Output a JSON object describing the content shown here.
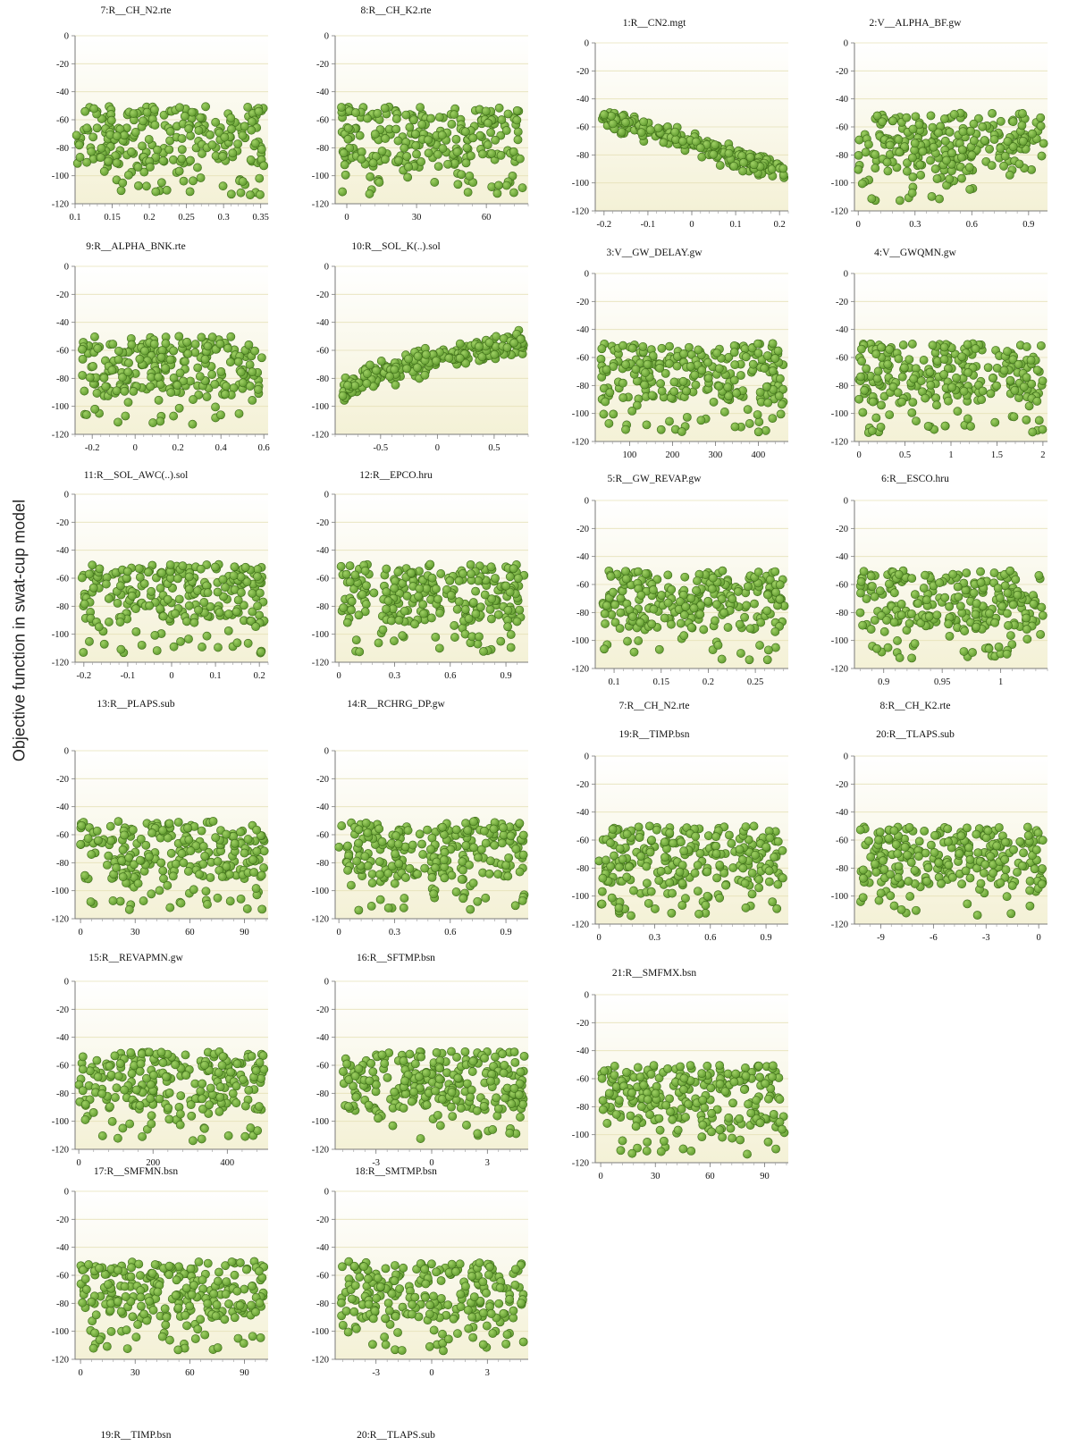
{
  "figure": {
    "ylabel": "Objective function in swat-cup model"
  },
  "dot_color": "#5f9a2e",
  "dot_edge": "#3d6b18",
  "yticks": [
    0,
    -20,
    -40,
    -60,
    -80,
    -100,
    -120
  ],
  "chart_data": [
    {
      "type": "scatter",
      "title": "7:R__CH_N2.rte",
      "xticks": [
        0.1,
        0.15,
        0.2,
        0.25,
        0.3,
        0.35
      ],
      "xlim": [
        0.1,
        0.36
      ],
      "ylim": [
        -120,
        0
      ],
      "pattern": "flat",
      "point_count": 250
    },
    {
      "type": "scatter",
      "title": "8:R__CH_K2.rte",
      "xticks": [
        0,
        30,
        60
      ],
      "xlim": [
        -5,
        78
      ],
      "ylim": [
        -120,
        0
      ],
      "pattern": "flat",
      "point_count": 250
    },
    {
      "type": "scatter",
      "title": "1:R__CN2.mgt",
      "xticks": [
        -0.2,
        -0.1,
        0,
        0.1,
        0.2
      ],
      "xlim": [
        -0.22,
        0.22
      ],
      "ylim": [
        -120,
        0
      ],
      "pattern": "decreasing",
      "point_count": 250
    },
    {
      "type": "scatter",
      "title": "2:V__ALPHA_BF.gw",
      "xticks": [
        0,
        0.3,
        0.6,
        0.9
      ],
      "xlim": [
        -0.02,
        1.0
      ],
      "ylim": [
        -120,
        0
      ],
      "pattern": "flat",
      "point_count": 250
    },
    {
      "type": "scatter",
      "title": "9:R__ALPHA_BNK.rte",
      "xticks": [
        -0.2,
        0,
        0.2,
        0.4,
        0.6
      ],
      "xlim": [
        -0.28,
        0.62
      ],
      "ylim": [
        -120,
        0
      ],
      "pattern": "flat",
      "point_count": 250
    },
    {
      "type": "scatter",
      "title": "10:R__SOL_K(..).sol",
      "xticks": [
        -0.5,
        0,
        0.5
      ],
      "xlim": [
        -0.9,
        0.8
      ],
      "ylim": [
        -120,
        0
      ],
      "pattern": "increasing",
      "point_count": 250
    },
    {
      "type": "scatter",
      "title": "3:V__GW_DELAY.gw",
      "xticks": [
        100,
        200,
        300,
        400
      ],
      "xlim": [
        20,
        470
      ],
      "ylim": [
        -120,
        0
      ],
      "pattern": "flat",
      "point_count": 250
    },
    {
      "type": "scatter",
      "title": "4:V__GWQMN.gw",
      "xticks": [
        0,
        0.5,
        1,
        1.5,
        2
      ],
      "xlim": [
        -0.05,
        2.05
      ],
      "ylim": [
        -120,
        0
      ],
      "pattern": "flat",
      "point_count": 250
    },
    {
      "type": "scatter",
      "title": "11:R__SOL_AWC(..).sol",
      "xticks": [
        -0.2,
        -0.1,
        0,
        0.1,
        0.2
      ],
      "xlim": [
        -0.22,
        0.22
      ],
      "ylim": [
        -120,
        0
      ],
      "pattern": "flat",
      "point_count": 250
    },
    {
      "type": "scatter",
      "title": "12:R__EPCO.hru",
      "xticks": [
        0,
        0.3,
        0.6,
        0.9
      ],
      "xlim": [
        -0.02,
        1.02
      ],
      "ylim": [
        -120,
        0
      ],
      "pattern": "flat",
      "point_count": 250
    },
    {
      "type": "scatter",
      "title": "5:R__GW_REVAP.gw",
      "xticks": [
        0.1,
        0.15,
        0.2,
        0.25
      ],
      "xlim": [
        0.08,
        0.285
      ],
      "ylim": [
        -120,
        0
      ],
      "pattern": "flat",
      "point_count": 250
    },
    {
      "type": "scatter",
      "title": "6:R__ESCO.hru",
      "xticks": [
        0.9,
        0.95,
        1
      ],
      "xlim": [
        0.875,
        1.04
      ],
      "ylim": [
        -120,
        0
      ],
      "pattern": "flat",
      "point_count": 250
    },
    {
      "type": "scatter",
      "title": "13:R__PLAPS.sub",
      "xticks": [
        0,
        30,
        60,
        90
      ],
      "xlim": [
        -3,
        103
      ],
      "ylim": [
        -120,
        0
      ],
      "pattern": "flat",
      "point_count": 250,
      "label_position": "above"
    },
    {
      "type": "scatter",
      "title": "14:R__RCHRG_DP.gw",
      "xticks": [
        0,
        0.3,
        0.6,
        0.9
      ],
      "xlim": [
        -0.02,
        1.02
      ],
      "ylim": [
        -120,
        0
      ],
      "pattern": "flat",
      "point_count": 250,
      "label_position": "above"
    },
    {
      "type": "scatter",
      "title": "19:R__TIMP.bsn",
      "xticks": [
        0,
        0.3,
        0.6,
        0.9
      ],
      "xlim": [
        -0.02,
        1.02
      ],
      "ylim": [
        -120,
        0
      ],
      "pattern": "flat",
      "point_count": 250,
      "extra_label": "7:R__CH_N2.rte"
    },
    {
      "type": "scatter",
      "title": "20:R__TLAPS.sub",
      "xticks": [
        -9,
        -6,
        -3,
        0
      ],
      "xlim": [
        -10.5,
        0.5
      ],
      "ylim": [
        -120,
        0
      ],
      "pattern": "flat",
      "point_count": 250,
      "extra_label": "8:R__CH_K2.rte"
    },
    {
      "type": "scatter",
      "title": "15:R__REVAPMN.gw",
      "xticks": [
        0,
        200,
        400
      ],
      "xlim": [
        -10,
        510
      ],
      "ylim": [
        -120,
        0
      ],
      "pattern": "flat",
      "point_count": 250,
      "label_position": "above"
    },
    {
      "type": "scatter",
      "title": "16:R__SFTMP.bsn",
      "xticks": [
        -3,
        0,
        3
      ],
      "xlim": [
        -5.2,
        5.2
      ],
      "ylim": [
        -120,
        0
      ],
      "pattern": "flat",
      "point_count": 250,
      "label_position": "above"
    },
    {
      "type": "scatter",
      "title": "21:R__SMFMX.bsn",
      "xticks": [
        0,
        30,
        60,
        90
      ],
      "xlim": [
        -3,
        103
      ],
      "ylim": [
        -120,
        0
      ],
      "pattern": "flat",
      "point_count": 250
    },
    {
      "type": "scatter",
      "title": "17:R__SMFMN.bsn",
      "xticks": [
        0,
        30,
        60,
        90
      ],
      "xlim": [
        -3,
        103
      ],
      "ylim": [
        -120,
        0
      ],
      "pattern": "flat",
      "point_count": 250,
      "label_position": "above",
      "bottom_label": "19:R__TIMP.bsn"
    },
    {
      "type": "scatter",
      "title": "18:R__SMTMP.bsn",
      "xticks": [
        -3,
        0,
        3
      ],
      "xlim": [
        -5.2,
        5.2
      ],
      "ylim": [
        -120,
        0
      ],
      "pattern": "flat",
      "point_count": 250,
      "label_position": "above",
      "bottom_label": "20:R__TLAPS.sub"
    }
  ]
}
